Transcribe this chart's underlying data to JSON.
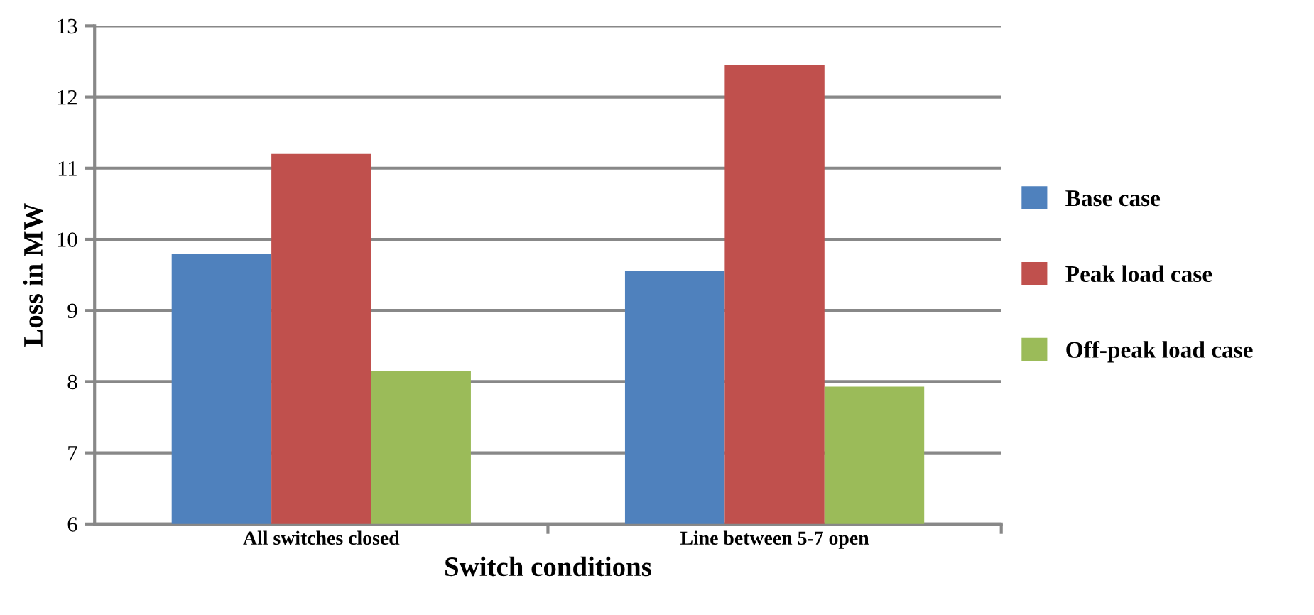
{
  "chart_data": {
    "type": "bar",
    "xlabel": "Switch conditions",
    "ylabel": "Loss in MW",
    "categories": [
      "All switches closed",
      "Line between 5-7 open"
    ],
    "series": [
      {
        "name": "Base case",
        "color": "#4f81bd",
        "values": [
          9.8,
          9.55
        ]
      },
      {
        "name": "Peak load case",
        "color": "#c0504d",
        "values": [
          11.2,
          12.45
        ]
      },
      {
        "name": "Off-peak load case",
        "color": "#9bbb59",
        "values": [
          8.15,
          7.93
        ]
      }
    ],
    "ylim": [
      6,
      13
    ],
    "yticks": [
      6,
      7,
      8,
      9,
      10,
      11,
      12,
      13
    ],
    "grid": "y",
    "legend": "right"
  }
}
